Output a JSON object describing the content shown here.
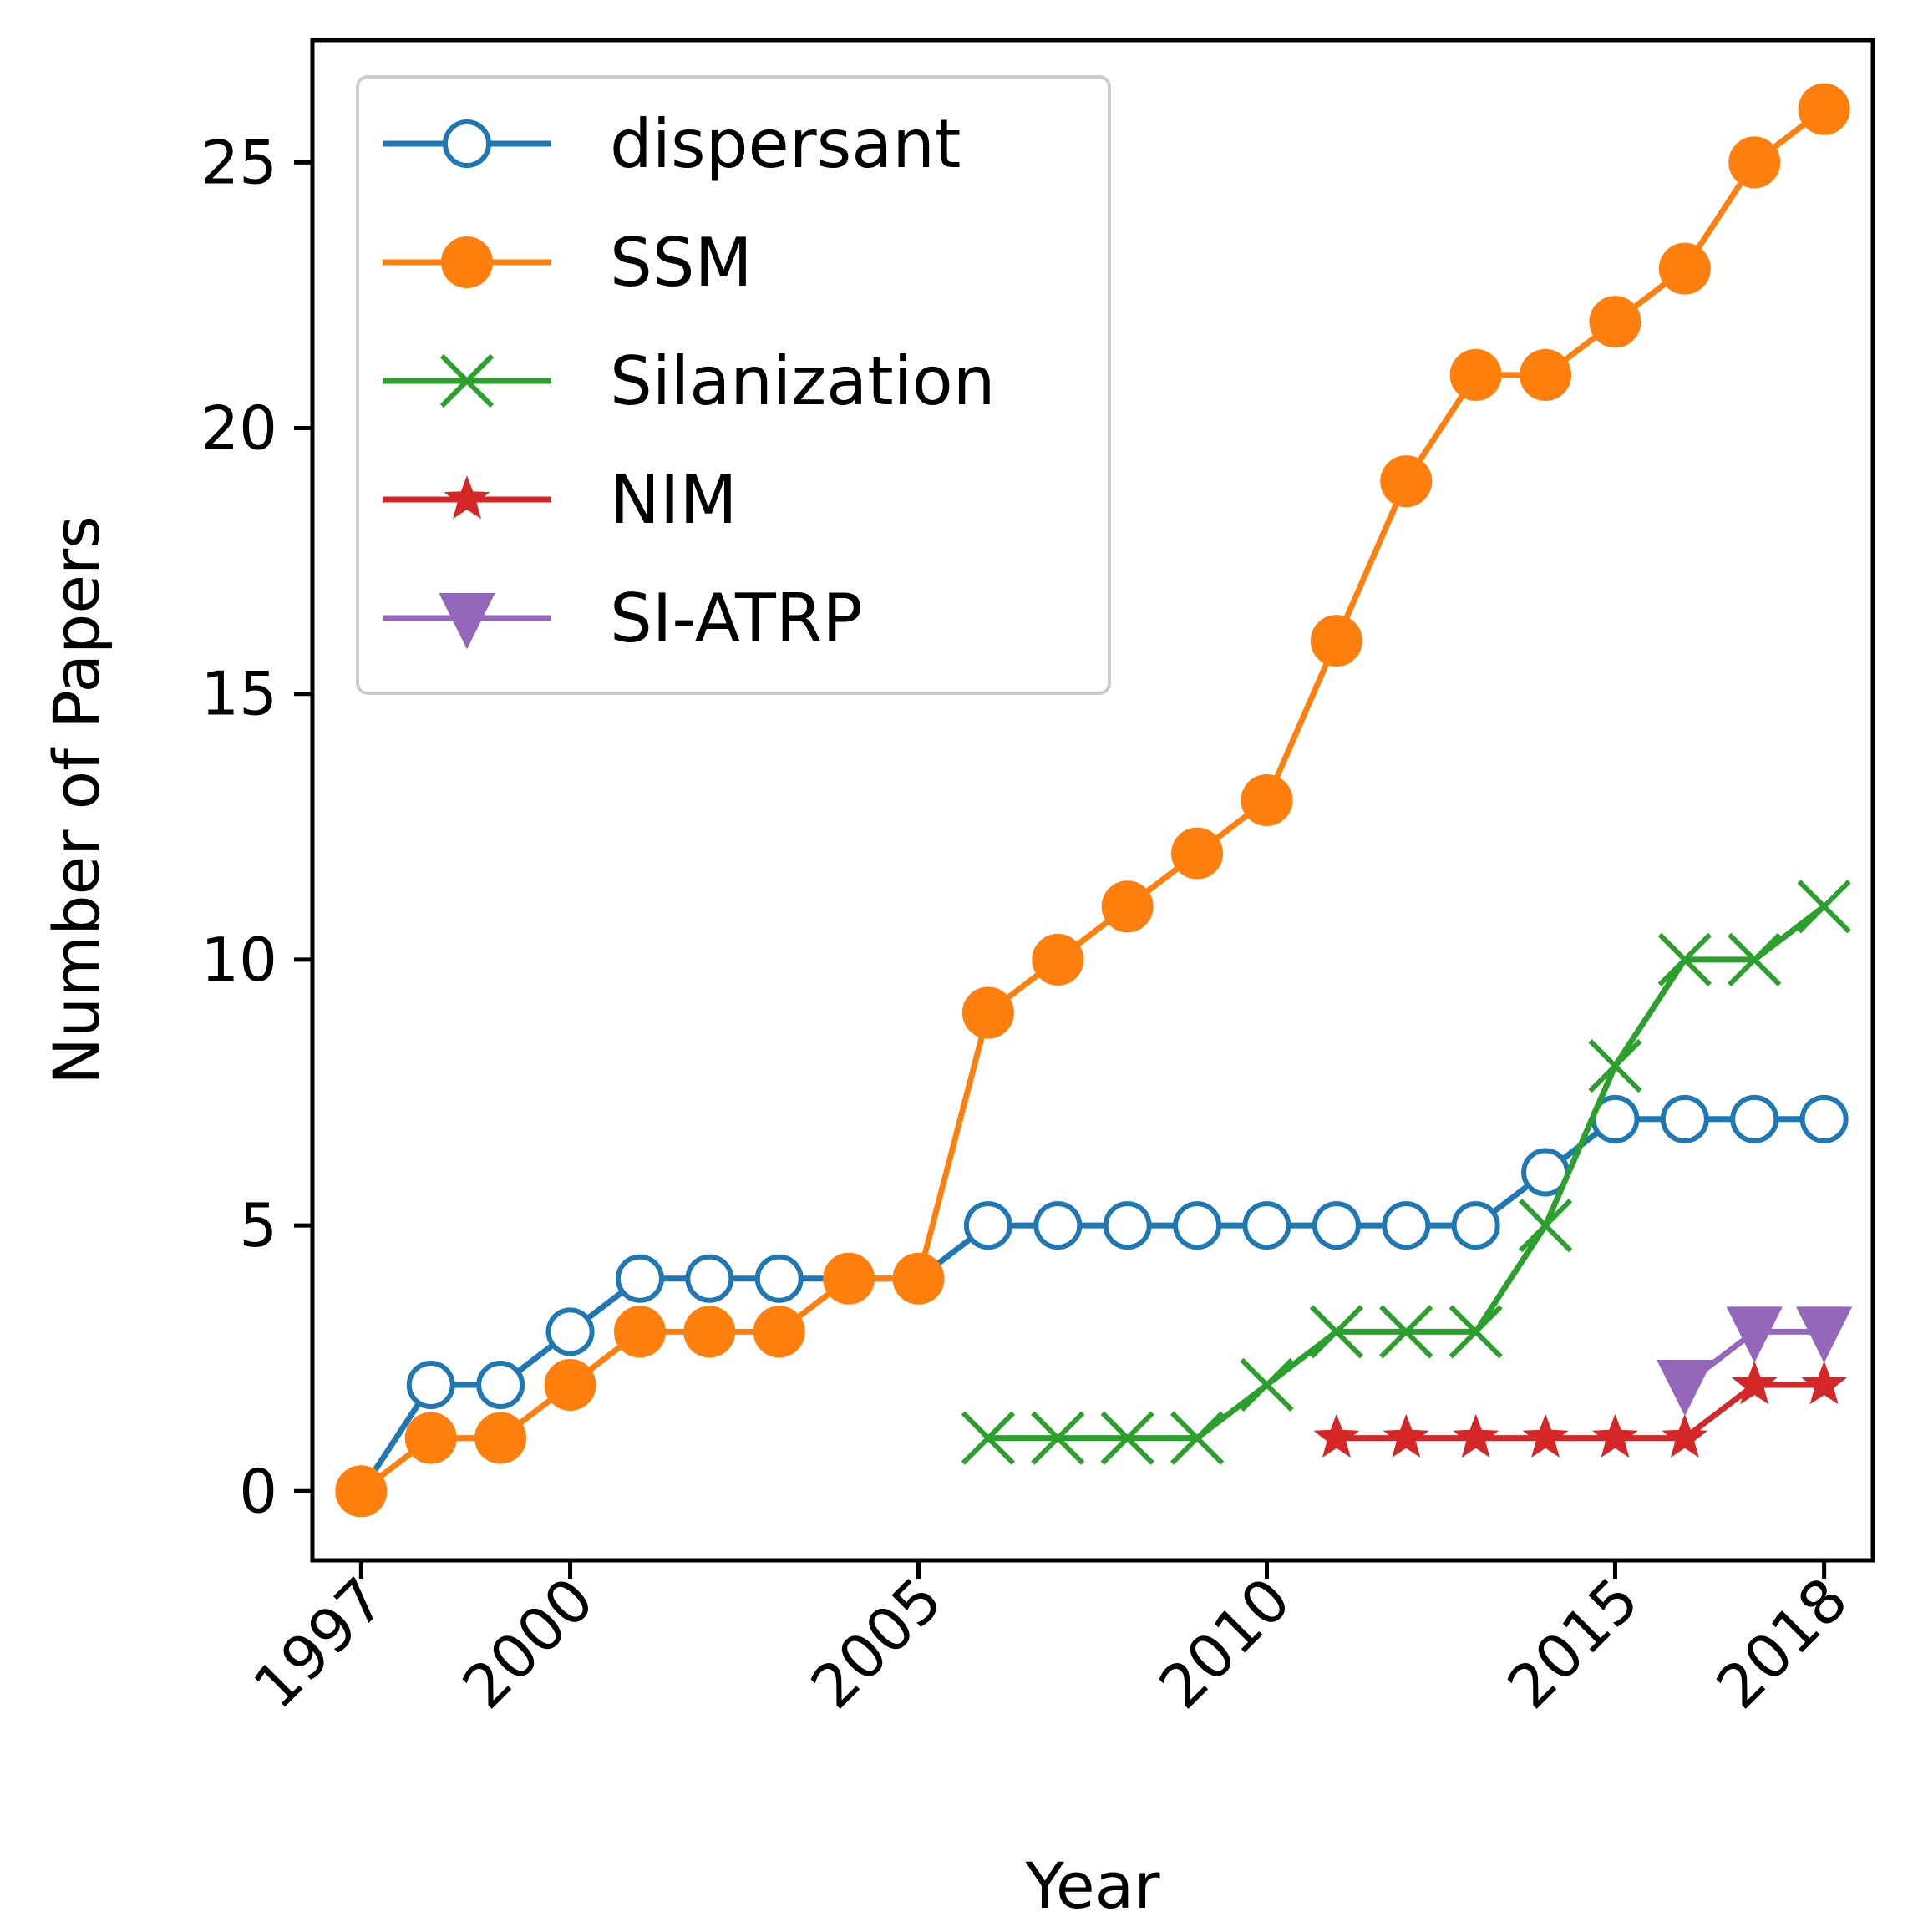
{
  "chart_data": {
    "type": "line",
    "title": "",
    "xlabel": "Year",
    "ylabel": "Number of Papers",
    "xlim": [
      1996.3,
      2018.7
    ],
    "ylim": [
      -1.3,
      27.3
    ],
    "xticks": [
      1997,
      2000,
      2005,
      2010,
      2015,
      2018
    ],
    "xtick_labels": [
      "1997",
      "2000",
      "2005",
      "2010",
      "2015",
      "2018"
    ],
    "yticks": [
      0,
      5,
      10,
      15,
      20,
      25
    ],
    "ytick_labels": [
      "0",
      "5",
      "10",
      "15",
      "20",
      "25"
    ],
    "grid": false,
    "legend_position": "upper-left",
    "series": [
      {
        "name": "dispersant",
        "color": "#1f77b4",
        "marker": "open-circle",
        "x": [
          1997,
          1998,
          1999,
          2000,
          2001,
          2002,
          2003,
          2004,
          2005,
          2006,
          2007,
          2008,
          2009,
          2010,
          2011,
          2012,
          2013,
          2014,
          2015,
          2016,
          2017,
          2018
        ],
        "y": [
          0,
          2,
          2,
          3,
          4,
          4,
          4,
          4,
          4,
          5,
          5,
          5,
          5,
          5,
          5,
          5,
          5,
          6,
          7,
          7,
          7,
          7
        ]
      },
      {
        "name": "SSM",
        "color": "#ff7f0e",
        "marker": "filled-circle",
        "x": [
          1997,
          1998,
          1999,
          2000,
          2001,
          2002,
          2003,
          2004,
          2005,
          2006,
          2007,
          2008,
          2009,
          2010,
          2011,
          2012,
          2013,
          2014,
          2015,
          2016,
          2017,
          2018
        ],
        "y": [
          0,
          1,
          1,
          2,
          3,
          3,
          3,
          4,
          4,
          9,
          10,
          11,
          12,
          13,
          16,
          19,
          21,
          21,
          22,
          23,
          25,
          26
        ]
      },
      {
        "name": "Silanization",
        "color": "#2ca02c",
        "marker": "x",
        "x": [
          2006,
          2007,
          2008,
          2009,
          2010,
          2011,
          2012,
          2013,
          2014,
          2015,
          2016,
          2017,
          2018
        ],
        "y": [
          1,
          1,
          1,
          1,
          2,
          3,
          3,
          3,
          5,
          8,
          10,
          10,
          11
        ]
      },
      {
        "name": "NIM",
        "color": "#d62728",
        "marker": "star",
        "x": [
          2011,
          2012,
          2013,
          2014,
          2015,
          2016,
          2017,
          2018
        ],
        "y": [
          1,
          1,
          1,
          1,
          1,
          1,
          2,
          2
        ]
      },
      {
        "name": "SI-ATRP",
        "color": "#9467bd",
        "marker": "triangle-down",
        "x": [
          2016,
          2017,
          2018
        ],
        "y": [
          2,
          3,
          3
        ]
      }
    ]
  }
}
